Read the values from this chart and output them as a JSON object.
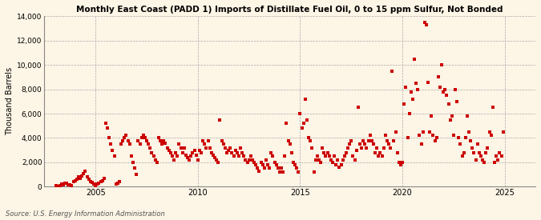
{
  "title": "Monthly East Coast (PADD 1) Imports of Distillate Fuel Oil, 0 to 15 ppm Sulfur, Not Bonded",
  "ylabel": "Thousand Barrels",
  "source": "Source: U.S. Energy Information Administration",
  "background_color": "#fdf5e6",
  "marker_color": "#cc0000",
  "marker_size": 7,
  "ylim": [
    0,
    14000
  ],
  "yticks": [
    0,
    2000,
    4000,
    6000,
    8000,
    10000,
    12000,
    14000
  ],
  "ytick_labels": [
    "0",
    "2,000",
    "4,000",
    "6,000",
    "8,000",
    "10,000",
    "12,000",
    "14,000"
  ],
  "xticks": [
    2005,
    2010,
    2015,
    2020,
    2025
  ],
  "xlim": [
    2002.5,
    2026.5
  ],
  "data": [
    [
      2003.083,
      100
    ],
    [
      2003.167,
      50
    ],
    [
      2003.25,
      80
    ],
    [
      2003.333,
      200
    ],
    [
      2003.417,
      150
    ],
    [
      2003.5,
      300
    ],
    [
      2003.583,
      250
    ],
    [
      2003.667,
      180
    ],
    [
      2003.75,
      120
    ],
    [
      2003.833,
      90
    ],
    [
      2003.917,
      400
    ],
    [
      2004.0,
      500
    ],
    [
      2004.083,
      600
    ],
    [
      2004.167,
      800
    ],
    [
      2004.25,
      700
    ],
    [
      2004.333,
      900
    ],
    [
      2004.417,
      1100
    ],
    [
      2004.5,
      1300
    ],
    [
      2004.583,
      800
    ],
    [
      2004.667,
      600
    ],
    [
      2004.75,
      400
    ],
    [
      2004.833,
      350
    ],
    [
      2004.917,
      200
    ],
    [
      2005.0,
      100
    ],
    [
      2005.083,
      200
    ],
    [
      2005.167,
      300
    ],
    [
      2005.25,
      400
    ],
    [
      2005.333,
      500
    ],
    [
      2005.417,
      700
    ],
    [
      2005.5,
      5200
    ],
    [
      2005.583,
      4800
    ],
    [
      2005.667,
      4000
    ],
    [
      2005.75,
      3500
    ],
    [
      2005.833,
      3000
    ],
    [
      2005.917,
      2500
    ],
    [
      2006.0,
      200
    ],
    [
      2006.083,
      300
    ],
    [
      2006.167,
      400
    ],
    [
      2006.25,
      3500
    ],
    [
      2006.333,
      3800
    ],
    [
      2006.417,
      4000
    ],
    [
      2006.5,
      4200
    ],
    [
      2006.583,
      3800
    ],
    [
      2006.667,
      3500
    ],
    [
      2006.75,
      2500
    ],
    [
      2006.833,
      2000
    ],
    [
      2006.917,
      1500
    ],
    [
      2007.0,
      1000
    ],
    [
      2007.083,
      3800
    ],
    [
      2007.167,
      3500
    ],
    [
      2007.25,
      4000
    ],
    [
      2007.333,
      4200
    ],
    [
      2007.417,
      4000
    ],
    [
      2007.5,
      3800
    ],
    [
      2007.583,
      3500
    ],
    [
      2007.667,
      3200
    ],
    [
      2007.75,
      2800
    ],
    [
      2007.833,
      2500
    ],
    [
      2007.917,
      2200
    ],
    [
      2008.0,
      2000
    ],
    [
      2008.083,
      4000
    ],
    [
      2008.167,
      3800
    ],
    [
      2008.25,
      3500
    ],
    [
      2008.333,
      3800
    ],
    [
      2008.417,
      3600
    ],
    [
      2008.5,
      3200
    ],
    [
      2008.583,
      3000
    ],
    [
      2008.667,
      2800
    ],
    [
      2008.75,
      2500
    ],
    [
      2008.833,
      2200
    ],
    [
      2008.917,
      2800
    ],
    [
      2009.0,
      2500
    ],
    [
      2009.083,
      3500
    ],
    [
      2009.167,
      3200
    ],
    [
      2009.25,
      2800
    ],
    [
      2009.333,
      3200
    ],
    [
      2009.417,
      2600
    ],
    [
      2009.5,
      2400
    ],
    [
      2009.583,
      2200
    ],
    [
      2009.667,
      2500
    ],
    [
      2009.75,
      2800
    ],
    [
      2009.833,
      3000
    ],
    [
      2009.917,
      2600
    ],
    [
      2010.0,
      2200
    ],
    [
      2010.083,
      3000
    ],
    [
      2010.167,
      2800
    ],
    [
      2010.25,
      3800
    ],
    [
      2010.333,
      3500
    ],
    [
      2010.417,
      3200
    ],
    [
      2010.5,
      3800
    ],
    [
      2010.583,
      3200
    ],
    [
      2010.667,
      2800
    ],
    [
      2010.75,
      2600
    ],
    [
      2010.833,
      2400
    ],
    [
      2010.917,
      2200
    ],
    [
      2011.0,
      2000
    ],
    [
      2011.083,
      5500
    ],
    [
      2011.167,
      3800
    ],
    [
      2011.25,
      3500
    ],
    [
      2011.333,
      3200
    ],
    [
      2011.417,
      2800
    ],
    [
      2011.5,
      3000
    ],
    [
      2011.583,
      3200
    ],
    [
      2011.667,
      2800
    ],
    [
      2011.75,
      2500
    ],
    [
      2011.833,
      3000
    ],
    [
      2011.917,
      2800
    ],
    [
      2012.0,
      2500
    ],
    [
      2012.083,
      3200
    ],
    [
      2012.167,
      2800
    ],
    [
      2012.25,
      2500
    ],
    [
      2012.333,
      2200
    ],
    [
      2012.417,
      2000
    ],
    [
      2012.5,
      2200
    ],
    [
      2012.583,
      2500
    ],
    [
      2012.667,
      2200
    ],
    [
      2012.75,
      2000
    ],
    [
      2012.833,
      1800
    ],
    [
      2012.917,
      1500
    ],
    [
      2013.0,
      1300
    ],
    [
      2013.083,
      2000
    ],
    [
      2013.167,
      1800
    ],
    [
      2013.25,
      1500
    ],
    [
      2013.333,
      2200
    ],
    [
      2013.417,
      1800
    ],
    [
      2013.5,
      1500
    ],
    [
      2013.583,
      2800
    ],
    [
      2013.667,
      2500
    ],
    [
      2013.75,
      2000
    ],
    [
      2013.833,
      1800
    ],
    [
      2013.917,
      1500
    ],
    [
      2014.0,
      1200
    ],
    [
      2014.083,
      1500
    ],
    [
      2014.167,
      1200
    ],
    [
      2014.25,
      2500
    ],
    [
      2014.333,
      5200
    ],
    [
      2014.417,
      3800
    ],
    [
      2014.5,
      3500
    ],
    [
      2014.583,
      2800
    ],
    [
      2014.667,
      2000
    ],
    [
      2014.75,
      1800
    ],
    [
      2014.833,
      1500
    ],
    [
      2014.917,
      1200
    ],
    [
      2015.0,
      6000
    ],
    [
      2015.083,
      4800
    ],
    [
      2015.167,
      5200
    ],
    [
      2015.25,
      7200
    ],
    [
      2015.333,
      5500
    ],
    [
      2015.417,
      4000
    ],
    [
      2015.5,
      3800
    ],
    [
      2015.583,
      3200
    ],
    [
      2015.667,
      1200
    ],
    [
      2015.75,
      2200
    ],
    [
      2015.833,
      2500
    ],
    [
      2015.917,
      2200
    ],
    [
      2016.0,
      2000
    ],
    [
      2016.083,
      3200
    ],
    [
      2016.167,
      2800
    ],
    [
      2016.25,
      2500
    ],
    [
      2016.333,
      2800
    ],
    [
      2016.417,
      2500
    ],
    [
      2016.5,
      2200
    ],
    [
      2016.583,
      2000
    ],
    [
      2016.667,
      2500
    ],
    [
      2016.75,
      1800
    ],
    [
      2016.833,
      2200
    ],
    [
      2016.917,
      1600
    ],
    [
      2017.0,
      1800
    ],
    [
      2017.083,
      2200
    ],
    [
      2017.167,
      2500
    ],
    [
      2017.25,
      2800
    ],
    [
      2017.333,
      3200
    ],
    [
      2017.417,
      3500
    ],
    [
      2017.5,
      3800
    ],
    [
      2017.583,
      2500
    ],
    [
      2017.667,
      2200
    ],
    [
      2017.75,
      3000
    ],
    [
      2017.833,
      6500
    ],
    [
      2017.917,
      3500
    ],
    [
      2018.0,
      3200
    ],
    [
      2018.083,
      3800
    ],
    [
      2018.167,
      3500
    ],
    [
      2018.25,
      3200
    ],
    [
      2018.333,
      3800
    ],
    [
      2018.417,
      4200
    ],
    [
      2018.5,
      3800
    ],
    [
      2018.583,
      3500
    ],
    [
      2018.667,
      2800
    ],
    [
      2018.75,
      3200
    ],
    [
      2018.833,
      2500
    ],
    [
      2018.917,
      2800
    ],
    [
      2019.0,
      2500
    ],
    [
      2019.083,
      3200
    ],
    [
      2019.167,
      4200
    ],
    [
      2019.25,
      3800
    ],
    [
      2019.333,
      3500
    ],
    [
      2019.417,
      3200
    ],
    [
      2019.5,
      9500
    ],
    [
      2019.583,
      3800
    ],
    [
      2019.667,
      4500
    ],
    [
      2019.75,
      2800
    ],
    [
      2019.833,
      2000
    ],
    [
      2019.917,
      1800
    ],
    [
      2020.0,
      2000
    ],
    [
      2020.083,
      6800
    ],
    [
      2020.167,
      8200
    ],
    [
      2020.25,
      4000
    ],
    [
      2020.333,
      6000
    ],
    [
      2020.417,
      7800
    ],
    [
      2020.5,
      7200
    ],
    [
      2020.583,
      10500
    ],
    [
      2020.667,
      8500
    ],
    [
      2020.75,
      8000
    ],
    [
      2020.833,
      4200
    ],
    [
      2020.917,
      3500
    ],
    [
      2021.0,
      4500
    ],
    [
      2021.083,
      13500
    ],
    [
      2021.167,
      13300
    ],
    [
      2021.25,
      8600
    ],
    [
      2021.333,
      4500
    ],
    [
      2021.417,
      5800
    ],
    [
      2021.5,
      4200
    ],
    [
      2021.583,
      3800
    ],
    [
      2021.667,
      4000
    ],
    [
      2021.75,
      9000
    ],
    [
      2021.833,
      8200
    ],
    [
      2021.917,
      10000
    ],
    [
      2022.0,
      7800
    ],
    [
      2022.083,
      8000
    ],
    [
      2022.167,
      7500
    ],
    [
      2022.25,
      6800
    ],
    [
      2022.333,
      5500
    ],
    [
      2022.417,
      5800
    ],
    [
      2022.5,
      4200
    ],
    [
      2022.583,
      8000
    ],
    [
      2022.667,
      7000
    ],
    [
      2022.75,
      4000
    ],
    [
      2022.833,
      3500
    ],
    [
      2022.917,
      2500
    ],
    [
      2023.0,
      2800
    ],
    [
      2023.083,
      4000
    ],
    [
      2023.167,
      5800
    ],
    [
      2023.25,
      4500
    ],
    [
      2023.333,
      3800
    ],
    [
      2023.417,
      3200
    ],
    [
      2023.5,
      2800
    ],
    [
      2023.583,
      2200
    ],
    [
      2023.667,
      3500
    ],
    [
      2023.75,
      2800
    ],
    [
      2023.833,
      2500
    ],
    [
      2023.917,
      2200
    ],
    [
      2024.0,
      2000
    ],
    [
      2024.083,
      2800
    ],
    [
      2024.167,
      3200
    ],
    [
      2024.25,
      4500
    ],
    [
      2024.333,
      4200
    ],
    [
      2024.417,
      6500
    ],
    [
      2024.5,
      2000
    ],
    [
      2024.583,
      2500
    ],
    [
      2024.667,
      2200
    ],
    [
      2024.75,
      2800
    ],
    [
      2024.833,
      2500
    ],
    [
      2024.917,
      4500
    ]
  ]
}
